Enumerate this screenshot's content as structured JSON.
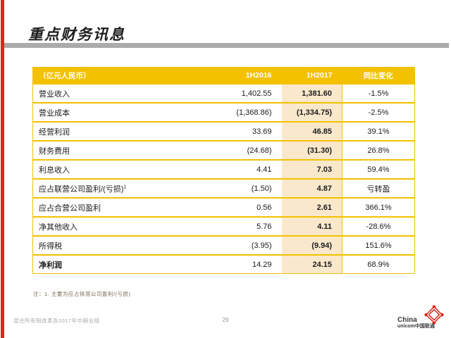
{
  "slide": {
    "title": "重点财务讯息",
    "footnote": "注：1. 主要为应占铁塔公司盈利/(亏损)"
  },
  "table": {
    "headers": [
      "（亿元人民币）",
      "1H2016",
      "1H2017",
      "同比变化"
    ],
    "rows": [
      {
        "label": "营业收入",
        "h1_2016": "1,402.55",
        "h1_2017": "1,381.60",
        "yoy": "-1.5%"
      },
      {
        "label": "营业成本",
        "h1_2016": "(1,368.86)",
        "h1_2017": "(1,334.75)",
        "yoy": "-2.5%"
      },
      {
        "label": "经营利润",
        "h1_2016": "33.69",
        "h1_2017": "46.85",
        "yoy": "39.1%"
      },
      {
        "label": "财务费用",
        "h1_2016": "(24.68)",
        "h1_2017": "(31.30)",
        "yoy": "26.8%"
      },
      {
        "label": "利息收入",
        "h1_2016": "4.41",
        "h1_2017": "7.03",
        "yoy": "59.4%"
      },
      {
        "label": "应占联营公司盈利/(亏损)",
        "superscript": "1",
        "h1_2016": "(1.50)",
        "h1_2017": "4.87",
        "yoy": "亏转盈"
      },
      {
        "label": "应占合营公司盈利",
        "h1_2016": "0.56",
        "h1_2017": "2.61",
        "yoy": "366.1%"
      },
      {
        "label": "净其他收入",
        "h1_2016": "5.76",
        "h1_2017": "4.11",
        "yoy": "-28.6%"
      },
      {
        "label": "所得税",
        "h1_2016": "(3.95)",
        "h1_2017": "(9.94)",
        "yoy": "151.6%"
      },
      {
        "label": "净利润",
        "h1_2016": "14.29",
        "h1_2017": "24.15",
        "yoy": "68.9%",
        "emphasis": true
      }
    ]
  },
  "footer": {
    "left": "混合所有制改革及2017年中期业绩",
    "page": "29"
  },
  "logo": {
    "brand_line1": "China",
    "brand_line2": "unicom中国联通"
  },
  "colors": {
    "header_yellow": "#F3C100",
    "highlight_column": "#FAE8CC",
    "accent_red": "#E2231A",
    "underline_gray": "#ABABAB"
  }
}
